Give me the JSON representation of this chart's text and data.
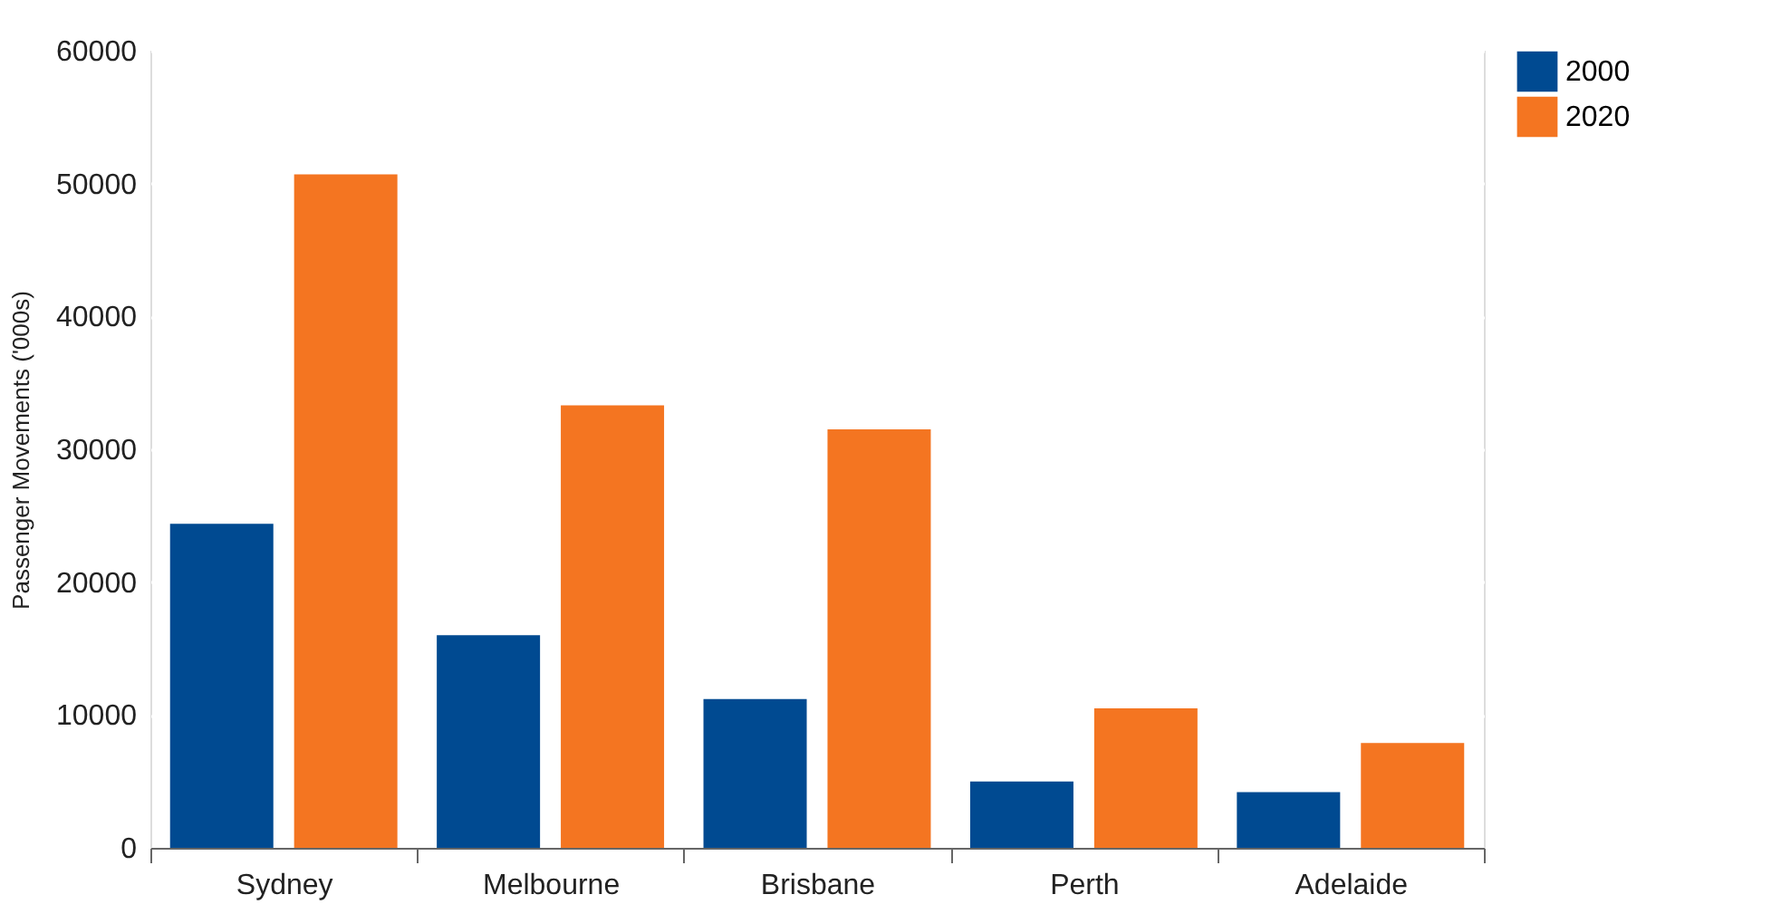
{
  "chart_data": {
    "type": "bar",
    "ylabel": "Passenger Movements ('000s)",
    "categories": [
      "Sydney",
      "Melbourne",
      "Brisbane",
      "Perth",
      "Adelaide"
    ],
    "series": [
      {
        "name": "2000",
        "color": "#004a91",
        "values": [
          24400,
          16000,
          11200,
          5000,
          4200
        ]
      },
      {
        "name": "2020",
        "color": "#f47521",
        "values": [
          50700,
          33300,
          31500,
          10500,
          7900
        ]
      }
    ],
    "ylim": [
      0,
      60000
    ],
    "yticks": [
      0,
      10000,
      20000,
      30000,
      40000,
      50000,
      60000
    ],
    "grid": "y",
    "legend": "top right"
  }
}
